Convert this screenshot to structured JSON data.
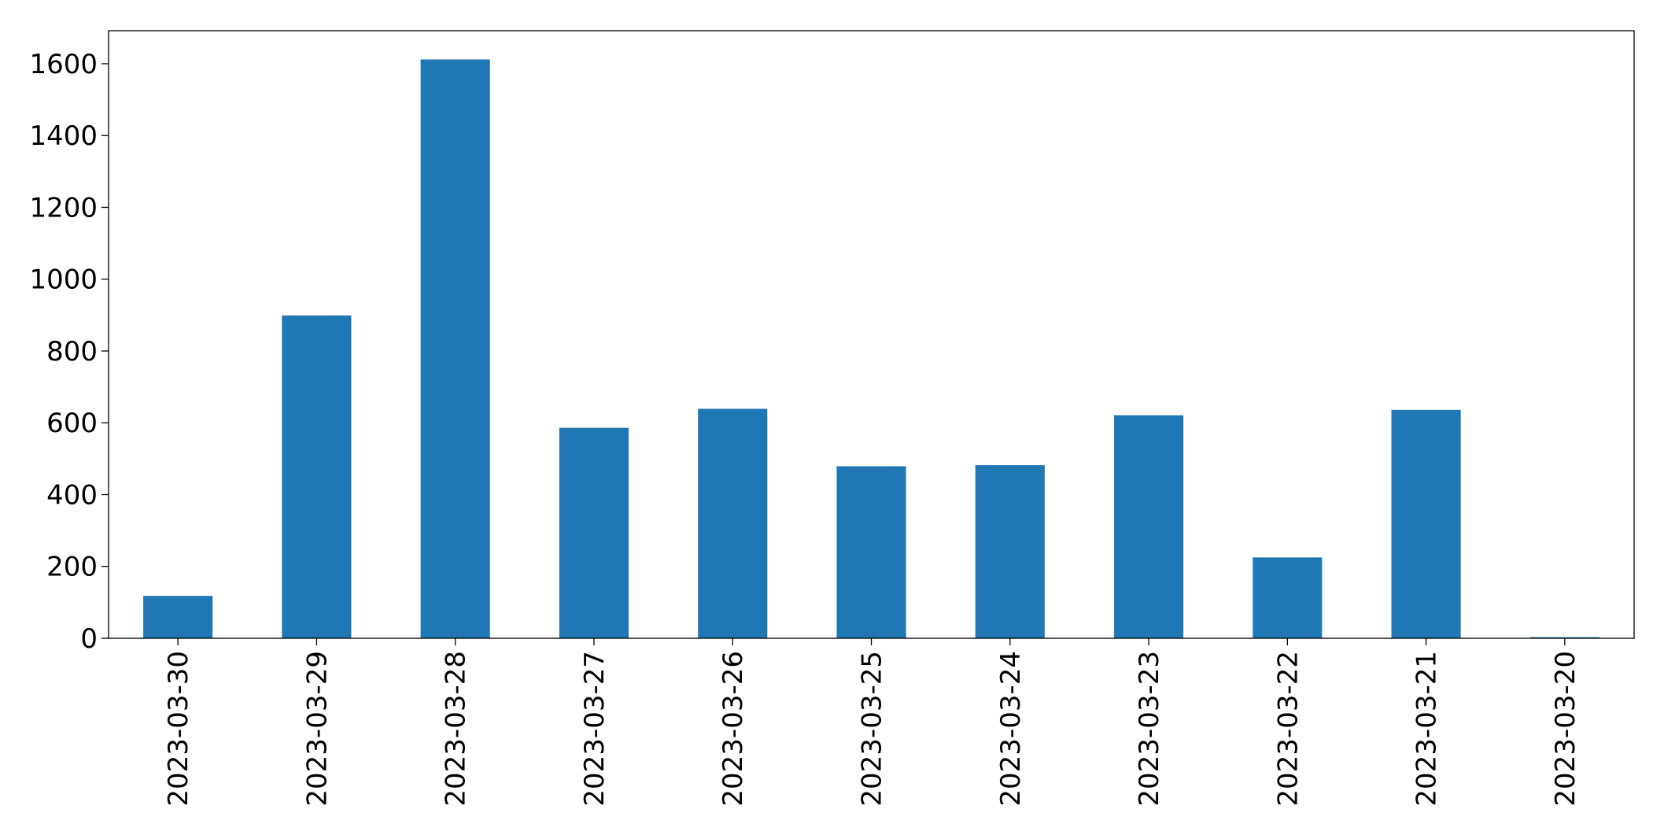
{
  "chart_data": {
    "type": "bar",
    "categories": [
      "2023-03-30",
      "2023-03-29",
      "2023-03-28",
      "2023-03-27",
      "2023-03-26",
      "2023-03-25",
      "2023-03-24",
      "2023-03-23",
      "2023-03-22",
      "2023-03-21",
      "2023-03-20"
    ],
    "values": [
      118,
      899,
      1612,
      586,
      639,
      479,
      482,
      621,
      225,
      636,
      3
    ],
    "color": "#1f77b4",
    "ylim": [
      0,
      1692
    ],
    "yticks": [
      0,
      200,
      400,
      600,
      800,
      1000,
      1200,
      1400,
      1600
    ],
    "grid": false
  }
}
